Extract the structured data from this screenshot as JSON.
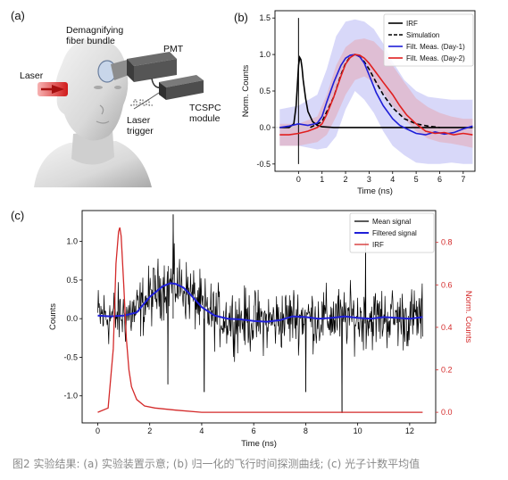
{
  "panel_a": {
    "label": "(a)",
    "annotations": {
      "laser": "Laser",
      "fiber_bundle": "Demagnifying\nfiber bundle",
      "pmt": "PMT",
      "laser_trigger": "Laser\ntrigger",
      "tcspc": "TCSPC\nmodule"
    }
  },
  "caption": "图2 实验结果: (a) 实验装置示意; (b) 归一化的飞行时间探测曲线; (c) 光子计数平均值",
  "chart_data": [
    {
      "id": "panel_b",
      "panel_label": "(b)",
      "type": "line",
      "xlabel": "Time (ns)",
      "ylabel": "Norm. Counts",
      "xlim": [
        -1,
        7.5
      ],
      "ylim": [
        -0.6,
        1.6
      ],
      "xticks": [
        0,
        1,
        2,
        3,
        4,
        5,
        6,
        7
      ],
      "yticks": [
        -0.5,
        0.0,
        0.5,
        1.0,
        1.5
      ],
      "legend_position": "top-right",
      "series": [
        {
          "name": "IRF",
          "style": "solid",
          "color": "#000000",
          "x": [
            -0.8,
            -0.4,
            -0.2,
            -0.1,
            0.0,
            0.05,
            0.1,
            0.15,
            0.2,
            0.3,
            0.4,
            0.6,
            0.8,
            1.0,
            1.5,
            2.0,
            3.0,
            4.0,
            5.0,
            6.0,
            7.0,
            7.4
          ],
          "y": [
            0.0,
            0.0,
            0.05,
            0.3,
            0.85,
            0.96,
            0.93,
            0.82,
            0.65,
            0.4,
            0.22,
            0.08,
            0.03,
            0.01,
            0.0,
            0.0,
            0.0,
            0.0,
            0.0,
            0.0,
            0.0,
            0.0
          ]
        },
        {
          "name": "Simulation",
          "style": "dashed",
          "color": "#000000",
          "x": [
            0.5,
            1.0,
            1.5,
            1.8,
            2.0,
            2.2,
            2.4,
            2.6,
            2.8,
            3.0,
            3.3,
            3.6,
            4.0,
            4.5,
            5.0,
            5.5,
            6.0
          ],
          "y": [
            0.0,
            0.08,
            0.42,
            0.72,
            0.88,
            0.97,
            1.0,
            0.97,
            0.9,
            0.8,
            0.62,
            0.45,
            0.27,
            0.12,
            0.05,
            0.02,
            0.0
          ]
        },
        {
          "name": "Filt. Meas. (Day-1)",
          "style": "solid",
          "color": "#1f1fd8",
          "x": [
            -0.8,
            -0.4,
            0.0,
            0.4,
            0.8,
            1.0,
            1.2,
            1.5,
            1.8,
            2.0,
            2.2,
            2.4,
            2.6,
            2.8,
            3.0,
            3.3,
            3.6,
            4.0,
            4.3,
            4.6,
            5.0,
            5.4,
            5.8,
            6.2,
            6.6,
            7.0,
            7.4
          ],
          "y": [
            0.0,
            0.02,
            0.05,
            0.03,
            0.06,
            0.15,
            0.35,
            0.62,
            0.85,
            0.95,
            0.99,
            1.0,
            0.97,
            0.88,
            0.72,
            0.48,
            0.3,
            0.12,
            0.03,
            -0.02,
            -0.08,
            -0.1,
            -0.06,
            -0.09,
            -0.07,
            -0.02,
            0.02
          ]
        },
        {
          "name": "Filt. Meas. (Day-2)",
          "style": "solid",
          "color": "#e01f1f",
          "x": [
            -0.8,
            -0.4,
            0.0,
            0.4,
            0.8,
            1.0,
            1.2,
            1.5,
            1.8,
            2.0,
            2.2,
            2.4,
            2.6,
            2.8,
            3.0,
            3.3,
            3.6,
            4.0,
            4.3,
            4.6,
            5.0,
            5.4,
            5.8,
            6.2,
            6.6,
            7.0,
            7.4
          ],
          "y": [
            -0.1,
            -0.1,
            -0.08,
            -0.05,
            0.0,
            0.05,
            0.18,
            0.42,
            0.7,
            0.87,
            0.96,
            1.0,
            0.99,
            0.95,
            0.88,
            0.75,
            0.62,
            0.45,
            0.3,
            0.17,
            0.05,
            -0.05,
            -0.08,
            -0.07,
            -0.1,
            -0.08,
            -0.1
          ]
        }
      ],
      "bands": [
        {
          "series": "Filt. Meas. (Day-1)",
          "color": "#8f8fef",
          "opacity": 0.35,
          "x": [
            -0.8,
            0.0,
            0.8,
            1.2,
            1.6,
            2.0,
            2.4,
            2.8,
            3.2,
            3.6,
            4.0,
            4.5,
            5.0,
            5.5,
            6.0,
            6.5,
            7.0,
            7.4
          ],
          "upper": [
            0.25,
            0.3,
            0.45,
            0.8,
            1.25,
            1.45,
            1.48,
            1.45,
            1.35,
            1.15,
            0.9,
            0.65,
            0.5,
            0.42,
            0.4,
            0.38,
            0.38,
            0.38
          ],
          "lower": [
            -0.25,
            -0.25,
            -0.3,
            -0.28,
            -0.12,
            0.25,
            0.5,
            0.38,
            0.2,
            -0.05,
            -0.25,
            -0.38,
            -0.48,
            -0.5,
            -0.5,
            -0.48,
            -0.5,
            -0.5
          ]
        },
        {
          "series": "Filt. Meas. (Day-2)",
          "color": "#ef8f8f",
          "opacity": 0.35,
          "x": [
            -0.8,
            0.0,
            0.8,
            1.2,
            1.6,
            2.0,
            2.4,
            2.8,
            3.2,
            3.6,
            4.0,
            4.5,
            5.0,
            5.5,
            6.0,
            6.5,
            7.0,
            7.4
          ],
          "upper": [
            0.05,
            0.05,
            0.15,
            0.45,
            0.85,
            1.1,
            1.2,
            1.22,
            1.18,
            1.05,
            0.85,
            0.62,
            0.4,
            0.28,
            0.2,
            0.15,
            0.12,
            0.12
          ],
          "lower": [
            -0.25,
            -0.25,
            -0.2,
            -0.1,
            0.15,
            0.45,
            0.65,
            0.7,
            0.62,
            0.48,
            0.3,
            0.12,
            -0.05,
            -0.15,
            -0.2,
            -0.22,
            -0.25,
            -0.28
          ]
        }
      ]
    },
    {
      "id": "panel_c",
      "panel_label": "(c)",
      "type": "line",
      "xlabel": "Time (ns)",
      "ylabel": "Counts",
      "ylabel_right": "Norm. Counts",
      "xlim": [
        -0.6,
        13.0
      ],
      "ylim": [
        -1.35,
        1.4
      ],
      "ylim_right": [
        -0.05,
        0.95
      ],
      "xticks": [
        0,
        2,
        4,
        6,
        8,
        10,
        12
      ],
      "yticks": [
        -1.0,
        -0.5,
        0.0,
        0.5,
        1.0
      ],
      "yticks_right": [
        0.0,
        0.2,
        0.4,
        0.6,
        0.8
      ],
      "right_axis_color": "#d42a2a",
      "legend_position": "top-right",
      "series": [
        {
          "name": "Mean signal",
          "color": "#000000",
          "axis": "left",
          "x_start": 0.0,
          "x_end": 12.5,
          "noise_amplitude": 0.3,
          "notable_points": [
            {
              "x": 2.9,
              "y": 1.35
            },
            {
              "x": 2.7,
              "y": -0.85
            },
            {
              "x": 4.1,
              "y": -0.95
            },
            {
              "x": 9.4,
              "y": -1.22
            },
            {
              "x": 8.0,
              "y": -0.95
            },
            {
              "x": 10.3,
              "y": 1.0
            }
          ]
        },
        {
          "name": "Filtered signal",
          "color": "#1f1fd8",
          "axis": "left",
          "x": [
            0.0,
            0.5,
            1.0,
            1.5,
            2.0,
            2.5,
            2.8,
            3.0,
            3.3,
            3.6,
            4.0,
            4.5,
            5.0,
            5.5,
            6.0,
            6.5,
            7.0,
            7.5,
            8.0,
            8.5,
            9.0,
            9.5,
            10.0,
            10.5,
            11.0,
            11.5,
            12.0,
            12.5
          ],
          "y": [
            0.04,
            0.03,
            0.04,
            0.08,
            0.28,
            0.42,
            0.46,
            0.45,
            0.4,
            0.3,
            0.15,
            0.04,
            0.0,
            -0.01,
            -0.03,
            -0.04,
            -0.02,
            0.03,
            0.02,
            0.0,
            0.01,
            0.03,
            0.01,
            0.0,
            0.02,
            0.01,
            0.0,
            0.02
          ]
        },
        {
          "name": "IRF",
          "color": "#d42a2a",
          "axis": "right",
          "x": [
            0.0,
            0.4,
            0.6,
            0.7,
            0.8,
            0.85,
            0.9,
            1.0,
            1.1,
            1.2,
            1.3,
            1.5,
            1.8,
            2.2,
            3.0,
            4.0,
            6.0,
            8.0,
            10.0,
            12.5
          ],
          "y": [
            0.0,
            0.02,
            0.3,
            0.7,
            0.85,
            0.87,
            0.83,
            0.6,
            0.35,
            0.2,
            0.12,
            0.06,
            0.03,
            0.02,
            0.01,
            0.0,
            0.0,
            0.0,
            0.0,
            0.0
          ]
        }
      ]
    }
  ]
}
